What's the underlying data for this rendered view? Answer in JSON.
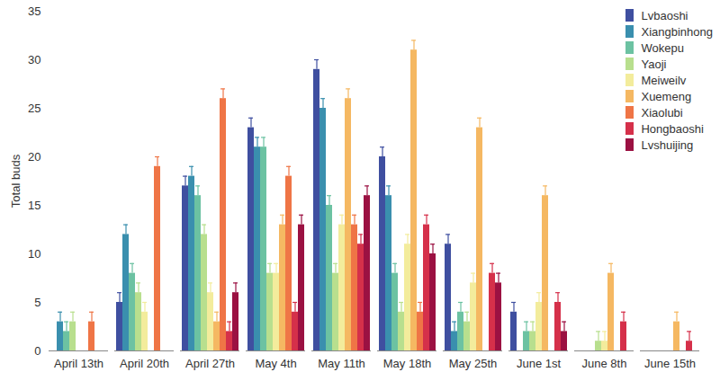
{
  "chart_data": {
    "type": "bar",
    "ylabel": "Total buds",
    "categories": [
      "April 13th",
      "April 20th",
      "April 27th",
      "May 4th",
      "May 11th",
      "May 18th",
      "May 25th",
      "June 1st",
      "June 8th",
      "June 15th"
    ],
    "ylim": [
      0,
      35
    ],
    "yticks": [
      0,
      5,
      10,
      15,
      20,
      25,
      30,
      35
    ],
    "grid": false,
    "legend": "top-right",
    "series": [
      {
        "name": "Lvbaoshi",
        "color": "#3f4fa0",
        "values": [
          0,
          5,
          17,
          23,
          29,
          20,
          11,
          4,
          0,
          0
        ],
        "errors": [
          0,
          1,
          1,
          1,
          1,
          1,
          1,
          1,
          0,
          0
        ]
      },
      {
        "name": "Xiangbinhong",
        "color": "#3a8fae",
        "values": [
          3,
          12,
          18,
          21,
          25,
          16,
          2,
          0,
          0,
          0
        ],
        "errors": [
          1,
          1,
          1,
          1,
          1,
          1,
          1,
          0,
          0,
          0
        ]
      },
      {
        "name": "Wokepu",
        "color": "#6cc2a2",
        "values": [
          2,
          8,
          16,
          21,
          15,
          8,
          4,
          2,
          0,
          0
        ],
        "errors": [
          1,
          1,
          1,
          1,
          1,
          1,
          1,
          1,
          0,
          0
        ]
      },
      {
        "name": "Yaoji",
        "color": "#b8df8e",
        "values": [
          3,
          6,
          12,
          8,
          8,
          4,
          3,
          2,
          1,
          0
        ],
        "errors": [
          1,
          1,
          1,
          1,
          1,
          1,
          1,
          1,
          1,
          0
        ]
      },
      {
        "name": "Meiweilv",
        "color": "#f3ec9c",
        "values": [
          0,
          4,
          6,
          8,
          13,
          11,
          7,
          5,
          1,
          0
        ],
        "errors": [
          0,
          1,
          1,
          1,
          1,
          1,
          1,
          1,
          1,
          0
        ]
      },
      {
        "name": "Xuemeng",
        "color": "#f5b862",
        "values": [
          0,
          0,
          3,
          13,
          26,
          31,
          23,
          16,
          8,
          3
        ],
        "errors": [
          0,
          0,
          1,
          1,
          1,
          1,
          1,
          1,
          1,
          1
        ]
      },
      {
        "name": "Xiaolubi",
        "color": "#ef7546",
        "values": [
          3,
          19,
          26,
          18,
          13,
          4,
          0,
          0,
          0,
          0
        ],
        "errors": [
          1,
          1,
          1,
          1,
          1,
          1,
          0,
          0,
          0,
          0
        ]
      },
      {
        "name": "Hongbaoshi",
        "color": "#d5304a",
        "values": [
          0,
          0,
          2,
          4,
          11,
          13,
          8,
          5,
          3,
          1
        ],
        "errors": [
          0,
          0,
          1,
          1,
          1,
          1,
          1,
          1,
          1,
          1
        ]
      },
      {
        "name": "Lvshuijing",
        "color": "#9b1142",
        "values": [
          0,
          0,
          6,
          13,
          16,
          10,
          7,
          2,
          0,
          0
        ],
        "errors": [
          0,
          0,
          1,
          1,
          1,
          1,
          1,
          1,
          0,
          0
        ]
      }
    ]
  }
}
